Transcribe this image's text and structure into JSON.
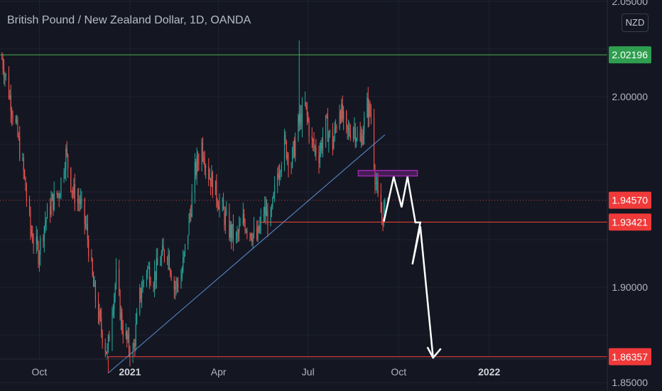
{
  "header": {
    "title": "British Pound / New Zealand Dollar, 1D, OANDA",
    "currency": "NZD"
  },
  "colors": {
    "background": "#141722",
    "up_candle": "#26a69a",
    "down_candle": "#ef5350",
    "resistance_line": "#4caf50",
    "support_line": "#f44336",
    "trendline": "#5b8fd6",
    "zone": "#9c27b0",
    "projection": "#ffffff",
    "grid": "#1f2230",
    "axis_text": "#b2b5be"
  },
  "chart_data": {
    "type": "candlestick",
    "title": "British Pound / New Zealand Dollar, 1D, OANDA",
    "symbol": "GBPNZD",
    "timeframe": "1D",
    "source": "OANDA",
    "x_tick_labels": [
      "Oct",
      "2021",
      "Apr",
      "Jul",
      "Oct",
      "2022"
    ],
    "x_range": [
      "2020-08-22",
      "2022-05-01"
    ],
    "y_ticks": [
      1.85,
      1.9,
      2.0,
      2.05
    ],
    "y_tick_labels": [
      "1.85000",
      "1.90000",
      "2.00000",
      "2.05000"
    ],
    "ylim": [
      1.8456,
      2.0507
    ],
    "grid": true,
    "price_labels": [
      {
        "value": 2.02196,
        "label": "2.02196",
        "role": "resistance"
      },
      {
        "value": 1.9457,
        "label": "1.94570",
        "role": "last price"
      },
      {
        "value": 1.93421,
        "label": "1.93421",
        "role": "support"
      },
      {
        "value": 1.86357,
        "label": "1.86357",
        "role": "target"
      }
    ],
    "horizontal_levels": [
      {
        "value": 2.02196,
        "from": "2020-08-22",
        "to": "2022-05-01"
      },
      {
        "value": 1.93421,
        "from": "2021-05-12",
        "to": "2022-05-01"
      },
      {
        "value": 1.86357,
        "from": "2020-12-10",
        "to": "2022-05-01"
      },
      {
        "value": 1.9457,
        "from": "2020-08-22",
        "to": "2022-05-01",
        "style": "dotted"
      }
    ],
    "trendline": [
      {
        "date": "2020-12-10",
        "value": 1.855
      },
      {
        "date": "2021-09-17",
        "value": 1.98
      }
    ],
    "zone": {
      "from": "2021-08-21",
      "to": "2021-10-20",
      "top": 1.9613,
      "bottom": 1.9584
    },
    "projection_path": [
      {
        "date": "2021-09-16",
        "value": 1.9345
      },
      {
        "date": "2021-09-26",
        "value": 1.958
      },
      {
        "date": "2021-10-04",
        "value": 1.942
      },
      {
        "date": "2021-10-10",
        "value": 1.958
      },
      {
        "date": "2021-10-18",
        "value": 1.934
      },
      {
        "date": "2021-10-23",
        "value": 1.934
      },
      {
        "date": "2021-10-15",
        "value": 1.912
      },
      {
        "date": "2021-10-23",
        "value": 1.932
      },
      {
        "date": "2021-11-05",
        "value": 1.863
      }
    ],
    "price_path": [
      [
        "2020-08-24",
        2.02
      ],
      [
        "2020-09-01",
        2.0
      ],
      [
        "2020-09-08",
        1.982
      ],
      [
        "2020-09-15",
        1.96
      ],
      [
        "2020-09-22",
        1.93
      ],
      [
        "2020-09-30",
        1.918
      ],
      [
        "2020-10-07",
        1.935
      ],
      [
        "2020-10-14",
        1.945
      ],
      [
        "2020-10-21",
        1.95
      ],
      [
        "2020-10-28",
        1.97
      ],
      [
        "2020-11-04",
        1.95
      ],
      [
        "2020-11-11",
        1.945
      ],
      [
        "2020-11-18",
        1.93
      ],
      [
        "2020-11-25",
        1.9
      ],
      [
        "2020-12-02",
        1.88
      ],
      [
        "2020-12-09",
        1.865
      ],
      [
        "2020-12-14",
        1.89
      ],
      [
        "2020-12-18",
        1.905
      ],
      [
        "2020-12-24",
        1.88
      ],
      [
        "2020-12-30",
        1.87
      ],
      [
        "2021-01-04",
        1.865
      ],
      [
        "2021-01-11",
        1.895
      ],
      [
        "2021-01-18",
        1.91
      ],
      [
        "2021-01-25",
        1.905
      ],
      [
        "2021-02-01",
        1.915
      ],
      [
        "2021-02-08",
        1.92
      ],
      [
        "2021-02-15",
        1.9
      ],
      [
        "2021-02-22",
        1.905
      ],
      [
        "2021-03-01",
        1.93
      ],
      [
        "2021-03-08",
        1.96
      ],
      [
        "2021-03-15",
        1.975
      ],
      [
        "2021-03-22",
        1.96
      ],
      [
        "2021-03-29",
        1.95
      ],
      [
        "2021-04-05",
        1.94
      ],
      [
        "2021-04-12",
        1.93
      ],
      [
        "2021-04-19",
        1.925
      ],
      [
        "2021-04-26",
        1.935
      ],
      [
        "2021-05-03",
        1.93
      ],
      [
        "2021-05-10",
        1.925
      ],
      [
        "2021-05-17",
        1.94
      ],
      [
        "2021-05-24",
        1.935
      ],
      [
        "2021-05-31",
        1.96
      ],
      [
        "2021-06-07",
        1.975
      ],
      [
        "2021-06-14",
        1.965
      ],
      [
        "2021-06-21",
        1.985
      ],
      [
        "2021-06-28",
        1.995
      ],
      [
        "2021-07-05",
        1.975
      ],
      [
        "2021-07-12",
        1.97
      ],
      [
        "2021-07-19",
        1.985
      ],
      [
        "2021-07-26",
        1.975
      ],
      [
        "2021-08-02",
        1.995
      ],
      [
        "2021-08-09",
        1.98
      ],
      [
        "2021-08-16",
        1.985
      ],
      [
        "2021-08-23",
        1.975
      ],
      [
        "2021-08-30",
        1.995
      ],
      [
        "2021-09-03",
        1.99
      ],
      [
        "2021-09-07",
        1.96
      ],
      [
        "2021-09-10",
        1.945
      ],
      [
        "2021-09-14",
        1.937
      ],
      [
        "2021-09-17",
        1.94
      ],
      [
        "2021-09-20",
        1.9457
      ]
    ]
  }
}
